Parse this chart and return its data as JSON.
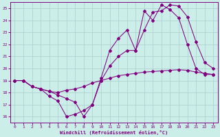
{
  "xlabel": "Windchill (Refroidissement éolien,°C)",
  "background_color": "#cceee8",
  "line_color": "#800080",
  "grid_color": "#aacccc",
  "xlim": [
    -0.5,
    23.5
  ],
  "ylim": [
    15.5,
    25.5
  ],
  "yticks": [
    16,
    17,
    18,
    19,
    20,
    21,
    22,
    23,
    24,
    25
  ],
  "xticks": [
    0,
    1,
    2,
    3,
    4,
    5,
    6,
    7,
    8,
    9,
    10,
    11,
    12,
    13,
    14,
    15,
    16,
    17,
    18,
    19,
    20,
    21,
    22,
    23
  ],
  "line1_x": [
    0,
    1,
    2,
    3,
    4,
    5,
    6,
    7,
    8,
    9,
    10,
    11,
    12,
    13,
    14,
    15,
    16,
    17,
    18,
    19,
    20,
    21,
    22,
    23
  ],
  "line1_y": [
    19.0,
    19.0,
    18.5,
    18.3,
    17.7,
    17.3,
    16.0,
    16.2,
    16.5,
    17.0,
    19.0,
    20.2,
    21.0,
    21.5,
    21.5,
    23.2,
    24.7,
    24.8,
    25.3,
    25.2,
    24.3,
    22.2,
    20.5,
    20.0
  ],
  "line2_x": [
    0,
    1,
    2,
    3,
    4,
    5,
    6,
    7,
    8,
    9,
    10,
    11,
    12,
    13,
    14,
    15,
    16,
    17,
    18,
    19,
    20,
    21,
    22,
    23
  ],
  "line2_y": [
    19.0,
    19.0,
    18.5,
    18.3,
    18.1,
    18.0,
    18.2,
    18.3,
    18.5,
    18.8,
    19.0,
    19.2,
    19.4,
    19.5,
    19.6,
    19.7,
    19.75,
    19.8,
    19.85,
    19.9,
    19.85,
    19.7,
    19.6,
    19.5
  ],
  "line3_x": [
    0,
    1,
    2,
    3,
    4,
    5,
    6,
    7,
    8,
    9,
    10,
    11,
    12,
    13,
    14,
    15,
    16,
    17,
    18,
    19,
    20,
    21,
    22,
    23
  ],
  "line3_y": [
    19.0,
    19.0,
    18.5,
    18.3,
    18.1,
    17.8,
    17.5,
    17.2,
    16.0,
    17.0,
    19.2,
    21.5,
    22.5,
    23.2,
    21.5,
    24.8,
    24.0,
    25.3,
    24.9,
    24.2,
    22.0,
    20.0,
    19.5,
    19.5
  ]
}
